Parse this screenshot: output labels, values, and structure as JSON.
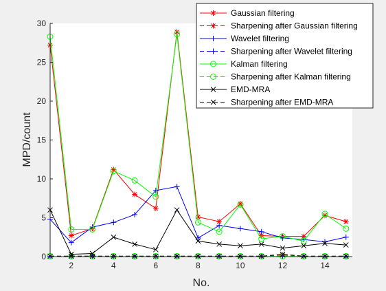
{
  "chart_data": {
    "type": "line",
    "xlabel": "No.",
    "ylabel": "MPD/count",
    "xlim": [
      1,
      15.3
    ],
    "ylim": [
      0,
      30
    ],
    "xticks": [
      2,
      4,
      6,
      8,
      10,
      12,
      14
    ],
    "yticks": [
      0,
      5,
      10,
      15,
      20,
      25,
      30
    ],
    "legend_position": "top-right",
    "x": [
      1,
      2,
      3,
      4,
      5,
      6,
      7,
      8,
      9,
      10,
      11,
      12,
      13,
      14,
      15
    ],
    "series": [
      {
        "name": "Gaussian filtering",
        "color": "#ff0000",
        "line": "solid",
        "marker": "star",
        "values": [
          27.2,
          2.7,
          3.6,
          11.2,
          8.0,
          6.2,
          28.9,
          5.1,
          4.5,
          6.8,
          2.7,
          2.6,
          2.6,
          5.3,
          4.5
        ]
      },
      {
        "name": "Sharpening after Gaussian filtering",
        "color": "#ff0000",
        "line": "dashed",
        "marker": "star",
        "values": [
          0.05,
          0.05,
          0.05,
          0.05,
          0.05,
          0.05,
          0.05,
          0.05,
          0.05,
          0.05,
          0.05,
          0.2,
          0.05,
          0.05,
          0.05
        ]
      },
      {
        "name": "Wavelet filtering",
        "color": "#0000ff",
        "line": "solid",
        "marker": "plus",
        "values": [
          4.8,
          1.8,
          3.8,
          4.4,
          5.4,
          8.5,
          9.0,
          2.4,
          4.0,
          3.6,
          3.2,
          2.4,
          2.2,
          1.9,
          2.5
        ]
      },
      {
        "name": "Sharpening after Wavelet filtering",
        "color": "#0000ff",
        "line": "dashed",
        "marker": "plus",
        "values": [
          0.05,
          0.05,
          0.05,
          0.05,
          0.05,
          0.05,
          0.05,
          0.05,
          0.05,
          0.05,
          0.05,
          0.05,
          0.05,
          0.05,
          0.05
        ]
      },
      {
        "name": "Kalman filtering",
        "color": "#00ff00",
        "line": "solid",
        "marker": "circle",
        "values": [
          28.3,
          3.5,
          3.5,
          11.0,
          9.8,
          7.7,
          28.6,
          4.4,
          3.2,
          6.7,
          2.3,
          2.6,
          2.0,
          5.5,
          3.6
        ]
      },
      {
        "name": "Sharpening after Kalman filtering",
        "color": "#00ff00",
        "line": "dashed",
        "marker": "circle",
        "values": [
          0.05,
          0.05,
          0.05,
          0.05,
          0.05,
          0.05,
          0.05,
          0.05,
          0.05,
          0.05,
          0.05,
          0.05,
          0.05,
          0.05,
          0.05
        ]
      },
      {
        "name": "EMD-MRA",
        "color": "#000000",
        "line": "solid",
        "marker": "x",
        "values": [
          6.0,
          0.3,
          0.4,
          2.5,
          1.6,
          0.9,
          6.0,
          2.0,
          1.6,
          1.4,
          1.6,
          1.1,
          1.4,
          1.7,
          1.5
        ]
      },
      {
        "name": "Sharpening after EMD-MRA",
        "color": "#000000",
        "line": "dashed",
        "marker": "x",
        "values": [
          0.05,
          0.05,
          0.05,
          0.05,
          0.05,
          0.05,
          0.05,
          0.05,
          0.05,
          0.05,
          0.05,
          0.3,
          0.05,
          0.05,
          0.05
        ]
      }
    ]
  }
}
